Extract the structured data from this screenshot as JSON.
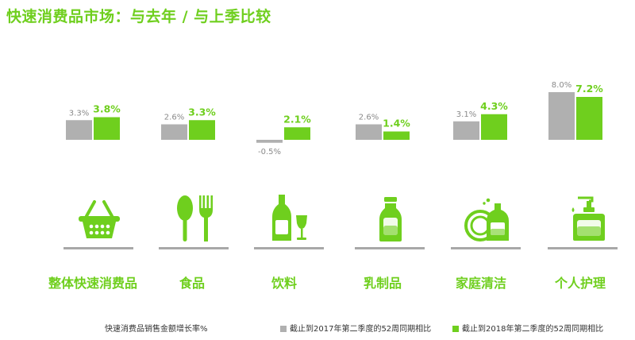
{
  "title": "快速消费品市场：与去年 / 与上季比较",
  "colors": {
    "accent": "#6fcf1e",
    "gray": "#b0b0b0",
    "value_gray": "#8a8a8a"
  },
  "chart_data": {
    "type": "bar",
    "categories": [
      "整体快速消费品",
      "食品",
      "饮料",
      "乳制品",
      "家庭清洁",
      "个人护理"
    ],
    "series": [
      {
        "name": "截止到2017年第二季度的52周同期相比",
        "color": "#b0b0b0",
        "values": [
          3.3,
          2.6,
          -0.5,
          2.6,
          3.1,
          8.0
        ],
        "labels": [
          "3.3%",
          "2.6%",
          "-0.5%",
          "2.6%",
          "3.1%",
          "8.0%"
        ]
      },
      {
        "name": "截止到2018年第二季度的52周同期相比",
        "color": "#6fcf1e",
        "values": [
          3.8,
          3.3,
          2.1,
          1.4,
          4.3,
          7.2
        ],
        "labels": [
          "3.8%",
          "3.3%",
          "2.1%",
          "1.4%",
          "4.3%",
          "7.2%"
        ]
      }
    ],
    "unit": "%",
    "grid": false
  },
  "icons": [
    "basket-icon",
    "spoon-fork-icon",
    "bottle-glass-icon",
    "milk-bottle-icon",
    "detergent-icon",
    "pump-bottle-icon"
  ],
  "footer": {
    "note": "快速消费品销售金额增长率%",
    "legend_2017": "截止到2017年第二季度的52周同期相比",
    "legend_2018": "截止到2018年第二季度的52周同期相比"
  }
}
